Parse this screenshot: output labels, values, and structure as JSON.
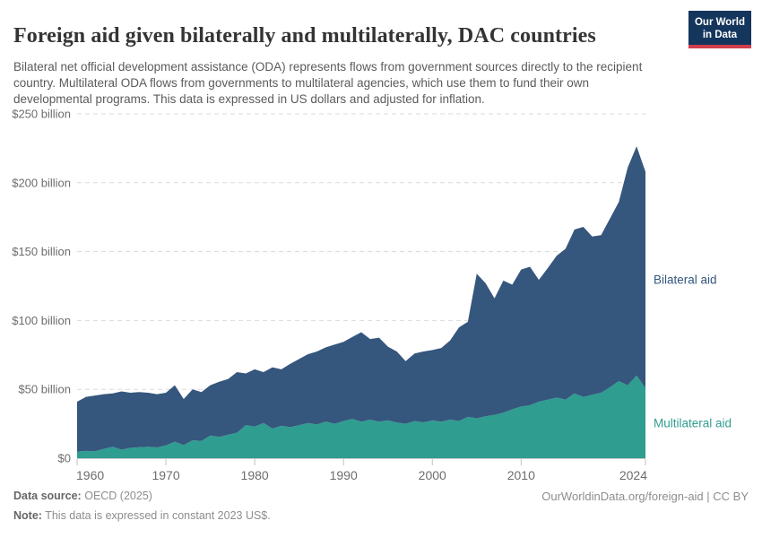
{
  "header": {
    "title": "Foreign aid given bilaterally and multilaterally, DAC countries",
    "subtitle": "Bilateral net official development assistance (ODA) represents flows from government sources directly to the recipient country. Multilateral ODA flows from governments to multilateral agencies, which use them to fund their own developmental programs. This data is expressed in US dollars and adjusted for inflation.",
    "logo": {
      "line1": "Our World",
      "line2": "in Data",
      "background": "#14355C",
      "accent_bar": "#D23D4C"
    }
  },
  "chart_data": {
    "type": "area",
    "stacked": true,
    "title": "Foreign aid given bilaterally and multilaterally, DAC countries",
    "xlabel": "",
    "ylabel": "",
    "unit": "US$ billion, constant 2023 prices",
    "grid": "horizontal-dashed",
    "legend_position": "right-inline",
    "ylim": [
      0,
      250
    ],
    "xlim": [
      1960,
      2024
    ],
    "yticks": [
      {
        "value": 0,
        "label": "$0"
      },
      {
        "value": 50,
        "label": "$50 billion"
      },
      {
        "value": 100,
        "label": "$100 billion"
      },
      {
        "value": 150,
        "label": "$150 billion"
      },
      {
        "value": 200,
        "label": "$200 billion"
      },
      {
        "value": 250,
        "label": "$250 billion"
      }
    ],
    "xticks": [
      {
        "value": 1960,
        "label": "1960"
      },
      {
        "value": 1970,
        "label": "1970"
      },
      {
        "value": 1980,
        "label": "1980"
      },
      {
        "value": 1990,
        "label": "1990"
      },
      {
        "value": 2000,
        "label": "2000"
      },
      {
        "value": 2010,
        "label": "2010"
      },
      {
        "value": 2024,
        "label": "2024"
      }
    ],
    "x": [
      1960,
      1961,
      1962,
      1963,
      1964,
      1965,
      1966,
      1967,
      1968,
      1969,
      1970,
      1971,
      1972,
      1973,
      1974,
      1975,
      1976,
      1977,
      1978,
      1979,
      1980,
      1981,
      1982,
      1983,
      1984,
      1985,
      1986,
      1987,
      1988,
      1989,
      1990,
      1991,
      1992,
      1993,
      1994,
      1995,
      1996,
      1997,
      1998,
      1999,
      2000,
      2001,
      2002,
      2003,
      2004,
      2005,
      2006,
      2007,
      2008,
      2009,
      2010,
      2011,
      2012,
      2013,
      2014,
      2015,
      2016,
      2017,
      2018,
      2019,
      2020,
      2021,
      2022,
      2023,
      2024
    ],
    "series": [
      {
        "name": "Multilateral aid",
        "color": "#2F9D90",
        "values": [
          4.8,
          5.3,
          5.0,
          6.8,
          8.3,
          6.2,
          7.5,
          8.0,
          8.3,
          7.8,
          9.3,
          12.0,
          9.5,
          13.0,
          12.5,
          16.5,
          15.5,
          17.0,
          18.5,
          24.0,
          23.0,
          25.5,
          21.5,
          23.5,
          22.5,
          24.0,
          25.5,
          24.5,
          26.5,
          25.0,
          27.0,
          28.5,
          26.5,
          28.0,
          26.5,
          27.5,
          26.0,
          25.0,
          27.0,
          26.0,
          27.5,
          26.5,
          28.0,
          27.0,
          30.0,
          29.0,
          30.5,
          31.5,
          33.0,
          35.5,
          37.5,
          38.5,
          41.0,
          42.5,
          44.0,
          42.5,
          47.0,
          44.5,
          46.0,
          47.5,
          51.5,
          56.0,
          53.0,
          60.0,
          51.0
        ]
      },
      {
        "name": "Bilateral aid",
        "color": "#35567D",
        "values": [
          36.2,
          39.2,
          40.5,
          39.7,
          38.7,
          42.3,
          40.0,
          40.0,
          39.2,
          38.7,
          38.2,
          41.0,
          33.5,
          37.0,
          35.5,
          36.5,
          40.0,
          40.5,
          44.0,
          37.5,
          41.5,
          37.0,
          44.5,
          41.0,
          46.0,
          48.0,
          50.0,
          53.0,
          54.0,
          57.5,
          57.5,
          59.5,
          65.0,
          58.5,
          61.0,
          53.5,
          51.5,
          45.5,
          49.0,
          51.5,
          51.0,
          53.5,
          57.5,
          68.0,
          69.0,
          105.0,
          96.5,
          84.5,
          96.0,
          90.5,
          99.5,
          100.5,
          88.5,
          95.5,
          103.0,
          109.5,
          119.0,
          123.5,
          115.0,
          114.5,
          122.5,
          130.0,
          158.0,
          166.5,
          157.0
        ]
      }
    ]
  },
  "footer": {
    "source_label": "Data source:",
    "source_value": "OECD (2025)",
    "note_label": "Note:",
    "note_value": "This data is expressed in constant 2023 US$.",
    "link": "OurWorldinData.org/foreign-aid | CC BY"
  }
}
